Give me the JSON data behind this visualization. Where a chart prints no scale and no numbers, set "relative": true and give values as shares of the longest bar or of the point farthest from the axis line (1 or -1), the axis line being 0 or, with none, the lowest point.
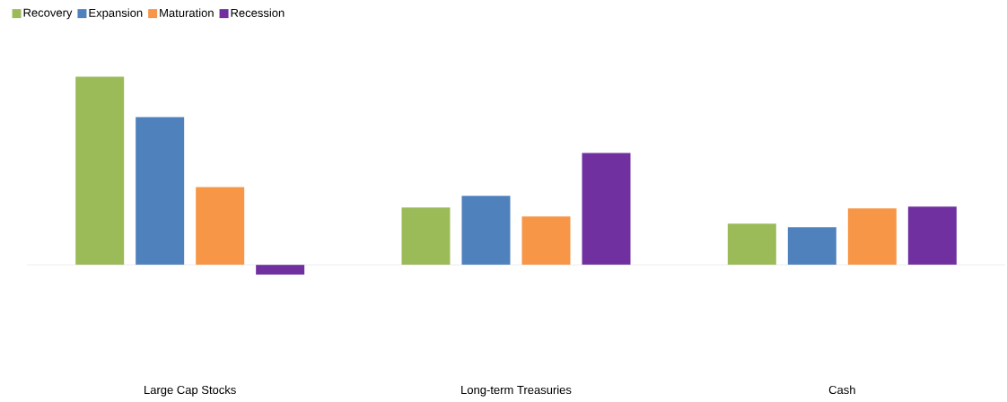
{
  "chart_data": {
    "type": "bar",
    "relative": true,
    "legend": "top left",
    "categories": [
      "Large Cap Stocks",
      "Long-term Treasuries",
      "Cash"
    ],
    "series": [
      {
        "name": "Recovery",
        "color": "#9bbb59",
        "values": [
          1,
          0.305,
          0.219
        ]
      },
      {
        "name": "Expansion",
        "color": "#4f81bd",
        "values": [
          0.786,
          0.367,
          0.2
        ]
      },
      {
        "name": "Maturation",
        "color": "#f79646",
        "values": [
          0.414,
          0.257,
          0.3
        ]
      },
      {
        "name": "Recession",
        "color": "#7030a0",
        "values": [
          -0.052,
          0.595,
          0.31
        ]
      }
    ]
  }
}
